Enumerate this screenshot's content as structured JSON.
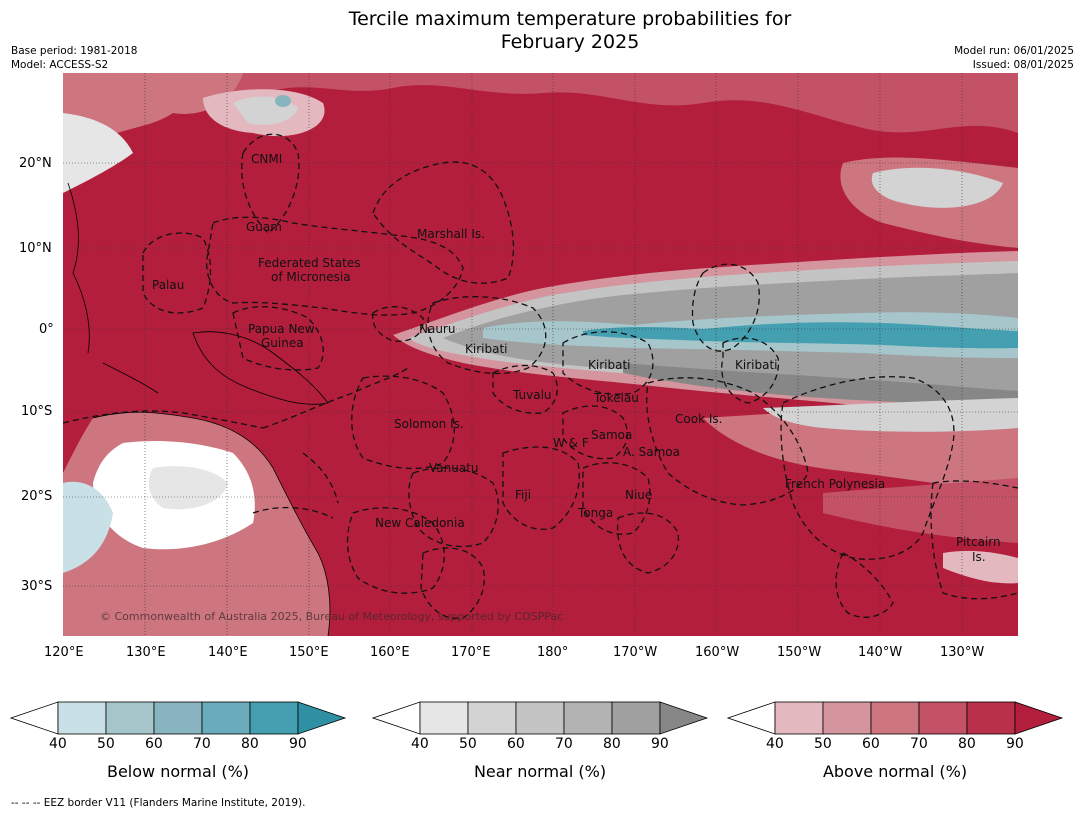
{
  "title_line1": "Tercile maximum temperature probabilities for",
  "title_line2": "February 2025",
  "meta_left": {
    "base_period": "Base period: 1981-2018",
    "model": "Model: ACCESS-S2"
  },
  "meta_right": {
    "model_run": "Model run: 06/01/2025",
    "issued": "Issued: 08/01/2025"
  },
  "lat_labels": [
    "20°N",
    "10°N",
    "0°",
    "10°S",
    "20°S",
    "30°S"
  ],
  "lon_labels": [
    "120°E",
    "130°E",
    "140°E",
    "150°E",
    "160°E",
    "170°E",
    "180°",
    "170°W",
    "160°W",
    "150°W",
    "140°W",
    "130°W"
  ],
  "regions": [
    "CNMI",
    "Guam",
    "Marshall Is.",
    "Federated States",
    "of Micronesia",
    "Palau",
    "Papua New",
    "Guinea",
    "Nauru",
    "Kiribati",
    "Kiribati",
    "Kiribati",
    "Tuvalu",
    "Tokelau",
    "Solomon Is.",
    "Cook Is.",
    "Samoa",
    "W & F",
    "A. Samoa",
    "Vanuatu",
    "Fiji",
    "Niue",
    "French Polynesia",
    "Tonga",
    "New Caledonia",
    "Pitcairn",
    "Is."
  ],
  "copyright": "© Commonwealth of Australia 2025, Bureau of Meteorology, supported by COSPPac",
  "colorbars": [
    {
      "title": "Below normal (%)",
      "ticks": [
        "40",
        "50",
        "60",
        "70",
        "80",
        "90"
      ],
      "colors": [
        "#ffffff",
        "#c9e0e6",
        "#a6c6cc",
        "#88b4bf",
        "#6aacbb",
        "#44a0b1",
        "#2f8fa3"
      ]
    },
    {
      "title": "Near normal (%)",
      "ticks": [
        "40",
        "50",
        "60",
        "70",
        "80",
        "90"
      ],
      "colors": [
        "#ffffff",
        "#e6e6e6",
        "#d3d3d3",
        "#c4c4c4",
        "#b3b3b3",
        "#a0a0a0",
        "#878787"
      ]
    },
    {
      "title": "Above normal (%)",
      "ticks": [
        "40",
        "50",
        "60",
        "70",
        "80",
        "90"
      ],
      "colors": [
        "#ffffff",
        "#e3b8bf",
        "#d4959e",
        "#cd7680",
        "#c35266",
        "#b9304a",
        "#b21e3c"
      ]
    }
  ],
  "footer": "--  --  -- EEZ border V11 (Flanders Marine Institute, 2019)."
}
